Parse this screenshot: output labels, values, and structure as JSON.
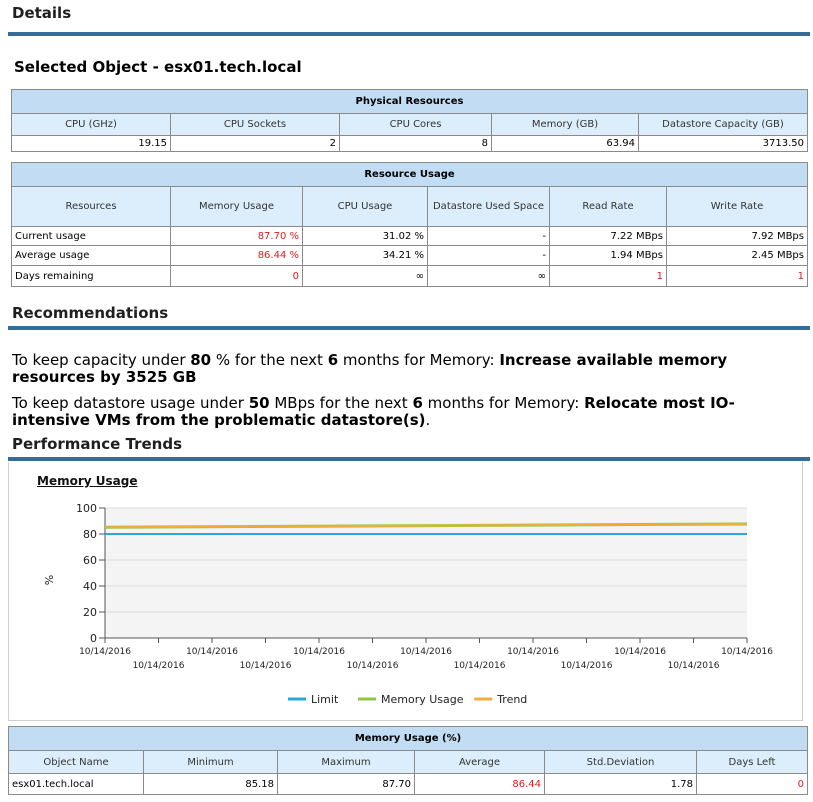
{
  "details": {
    "title": "Details"
  },
  "selected_object": {
    "title": "Selected Object - esx01.tech.local"
  },
  "physical": {
    "caption": "Physical Resources",
    "headers": [
      "CPU (GHz)",
      "CPU Sockets",
      "CPU Cores",
      "Memory (GB)",
      "Datastore Capacity (GB)"
    ],
    "values": [
      "19.15",
      "2",
      "8",
      "63.94",
      "3713.50"
    ]
  },
  "usage": {
    "caption": "Resource Usage",
    "headers": [
      "Resources",
      "Memory Usage",
      "CPU Usage",
      "Datastore Used Space",
      "Read Rate",
      "Write Rate"
    ],
    "rows": [
      [
        "Current usage",
        "87.70 %",
        "31.02 %",
        "-",
        "7.22 MBps",
        "7.92 MBps"
      ],
      [
        "Average usage",
        "86.44 %",
        "34.21 %",
        "-",
        "1.94 MBps",
        "2.45 MBps"
      ],
      [
        "Days remaining",
        "0",
        "∞",
        "∞",
        "1",
        "1"
      ]
    ]
  },
  "recommendations": {
    "title": "Recommendations",
    "line1": {
      "a": "To keep capacity under ",
      "b": "80",
      "c": " % for the next  ",
      "d": "6",
      "e": " months for Memory: ",
      "f": "Increase available memory resources by 3525 GB"
    },
    "line2": {
      "a": "To keep datastore usage under ",
      "b": "50",
      "c": " MBps for the next  ",
      "d": "6",
      "e": " months for Memory: ",
      "f": "Relocate most IO-intensive VMs from the problematic datastore(s)",
      "g": "."
    }
  },
  "performance": {
    "title": "Performance Trends"
  },
  "colors": {
    "limit": "#2aa7dc",
    "memory": "#8cc63f",
    "trend": "#f0ad3c",
    "accent": "#336d9b",
    "alert": "#e21a1a"
  },
  "chart_data": {
    "type": "line",
    "title": "Memory Usage",
    "ylabel": "%",
    "ylim": [
      0,
      100
    ],
    "yticks": [
      "0",
      "20",
      "40",
      "60",
      "80",
      "100"
    ],
    "xticks_top": [
      "10/14/2016",
      "10/14/2016",
      "10/14/2016",
      "10/14/2016",
      "10/14/2016",
      "10/14/2016",
      "10/14/2016"
    ],
    "xticks_bottom": [
      "10/14/2016",
      "10/14/2016",
      "10/14/2016",
      "10/14/2016",
      "10/14/2016",
      "10/14/2016"
    ],
    "legend_position": "bottom",
    "series": [
      {
        "name": "Limit",
        "values": [
          80,
          80
        ]
      },
      {
        "name": "Memory Usage",
        "values": [
          85.2,
          87.7
        ]
      },
      {
        "name": "Trend",
        "values": [
          85.2,
          87.7
        ]
      }
    ]
  },
  "memtable": {
    "caption": "Memory Usage (%)",
    "headers": [
      "Object Name",
      "Minimum",
      "Maximum",
      "Average",
      "Std.Deviation",
      "Days Left"
    ],
    "row": [
      "esx01.tech.local",
      "85.18",
      "87.70",
      "86.44",
      "1.78",
      "0"
    ]
  }
}
